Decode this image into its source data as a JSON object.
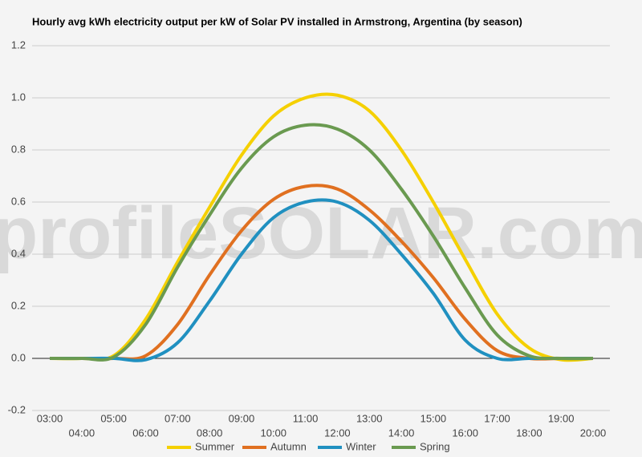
{
  "chart_data": {
    "type": "line",
    "title": "Hourly avg kWh electricity output per kW of Solar PV installed in Armstrong, Argentina (by season)",
    "watermark": "profileSOLAR.com",
    "categories": [
      "03:00",
      "04:00",
      "05:00",
      "06:00",
      "07:00",
      "08:00",
      "09:00",
      "10:00",
      "11:00",
      "12:00",
      "13:00",
      "14:00",
      "15:00",
      "16:00",
      "17:00",
      "18:00",
      "19:00",
      "20:00"
    ],
    "series": [
      {
        "name": "Summer",
        "color": "#f5d000",
        "values": [
          0,
          0,
          0.01,
          0.15,
          0.37,
          0.58,
          0.78,
          0.93,
          1.0,
          1.01,
          0.95,
          0.8,
          0.6,
          0.38,
          0.17,
          0.04,
          -0.005,
          0
        ]
      },
      {
        "name": "Autumn",
        "color": "#e07020",
        "values": [
          0,
          0,
          0,
          0.01,
          0.13,
          0.32,
          0.49,
          0.61,
          0.66,
          0.65,
          0.57,
          0.45,
          0.31,
          0.15,
          0.03,
          0,
          0,
          0
        ]
      },
      {
        "name": "Winter",
        "color": "#2090c0",
        "values": [
          0,
          0,
          0,
          -0.005,
          0.06,
          0.22,
          0.4,
          0.54,
          0.6,
          0.6,
          0.53,
          0.4,
          0.25,
          0.07,
          0,
          0,
          0,
          0
        ]
      },
      {
        "name": "Spring",
        "color": "#6a9a50",
        "values": [
          0,
          0,
          0.005,
          0.13,
          0.35,
          0.55,
          0.73,
          0.85,
          0.895,
          0.88,
          0.8,
          0.65,
          0.47,
          0.27,
          0.09,
          0.01,
          0,
          0
        ]
      }
    ],
    "ylim": [
      -0.2,
      1.2
    ],
    "yticks": [
      -0.2,
      {
        "value": 0,
        "label": "0.0"
      },
      0.2,
      0.4,
      0.6,
      0.8,
      {
        "value": 1,
        "label": "1.0"
      },
      1.2
    ],
    "grid": true,
    "legend": "bottom"
  }
}
